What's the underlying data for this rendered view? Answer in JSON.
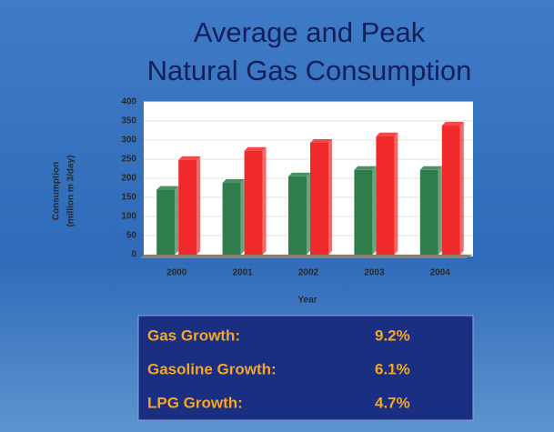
{
  "chart_data": {
    "type": "bar",
    "title": [
      "Average and Peak",
      "Natural Gas Consumption"
    ],
    "ylabel": [
      "Consumption",
      "(million m 3/day)"
    ],
    "xlabel": "Year",
    "categories": [
      "2000",
      "2001",
      "2002",
      "2003",
      "2004"
    ],
    "series": [
      {
        "color": "#2e7d4a",
        "values": [
          170,
          188,
          205,
          222,
          222
        ]
      },
      {
        "color": "#f02a2a",
        "values": [
          248,
          272,
          293,
          310,
          338
        ]
      }
    ],
    "ylim": [
      0,
      400
    ],
    "yticks": [
      0,
      50,
      100,
      150,
      200,
      250,
      300,
      350,
      400
    ],
    "grid": true
  },
  "table": {
    "rows": [
      [
        "Gas Growth:",
        "9.2%"
      ],
      [
        "Gasoline Growth:",
        "6.1%"
      ],
      [
        "LPG Growth:",
        "4.7%"
      ]
    ]
  }
}
